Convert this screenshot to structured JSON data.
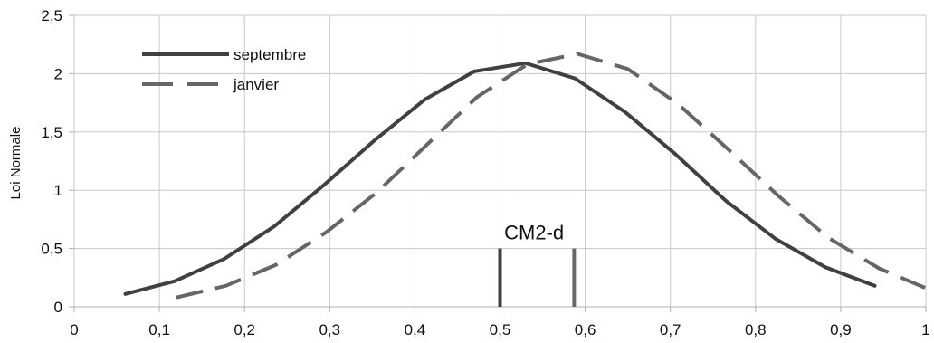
{
  "chart_data": {
    "type": "line",
    "title": "",
    "xlabel": "",
    "ylabel": "Loi Normale",
    "xlim": [
      0,
      1
    ],
    "ylim": [
      0,
      2.5
    ],
    "x_ticks": [
      "0",
      "0,1",
      "0,2",
      "0,3",
      "0,4",
      "0,5",
      "0,6",
      "0,7",
      "0,8",
      "0,9",
      "1"
    ],
    "y_ticks": [
      "0",
      "0,5",
      "1",
      "1,5",
      "2",
      "2,5"
    ],
    "grid": true,
    "legend_position": "top-left",
    "series": [
      {
        "name": "septembre",
        "style": "solid",
        "color": "#404040",
        "x": [
          0.06,
          0.118,
          0.176,
          0.235,
          0.294,
          0.353,
          0.412,
          0.47,
          0.53,
          0.588,
          0.647,
          0.706,
          0.765,
          0.824,
          0.882,
          0.94
        ],
        "y": [
          0.11,
          0.22,
          0.41,
          0.69,
          1.05,
          1.43,
          1.78,
          2.02,
          2.09,
          1.96,
          1.67,
          1.31,
          0.91,
          0.58,
          0.34,
          0.18
        ]
      },
      {
        "name": "janvier",
        "style": "dashed",
        "color": "#666666",
        "x": [
          0.12,
          0.178,
          0.237,
          0.296,
          0.355,
          0.414,
          0.473,
          0.532,
          0.591,
          0.65,
          0.709,
          0.768,
          0.827,
          0.886,
          0.945,
          1.0
        ],
        "y": [
          0.08,
          0.18,
          0.36,
          0.64,
          0.98,
          1.39,
          1.8,
          2.08,
          2.17,
          2.04,
          1.74,
          1.35,
          0.95,
          0.59,
          0.33,
          0.16
        ]
      }
    ],
    "annotations": [
      {
        "text": "CM2-d",
        "x": 0.54,
        "y": 0.58
      }
    ],
    "markers": [
      {
        "x": 0.5,
        "y_from": 0,
        "y_to": 0.5,
        "color": "#404040"
      },
      {
        "x": 0.587,
        "y_from": 0,
        "y_to": 0.5,
        "color": "#666666"
      }
    ]
  }
}
